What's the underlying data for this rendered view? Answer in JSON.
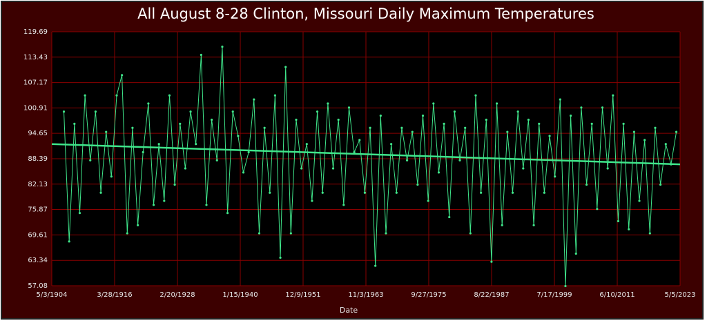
{
  "chart_data": {
    "type": "line",
    "title": "All August 8-28 Clinton, Missouri Daily Maximum Temperatures",
    "x_label": "Date",
    "xlim": [
      "1904-05-03",
      "2023-05-05"
    ],
    "xticks": [
      {
        "value": "1904-05-03",
        "label": "5/3/1904"
      },
      {
        "value": "1916-03-28",
        "label": "3/28/1916"
      },
      {
        "value": "1928-02-20",
        "label": "2/20/1928"
      },
      {
        "value": "1940-01-15",
        "label": "1/15/1940"
      },
      {
        "value": "1951-12-09",
        "label": "12/9/1951"
      },
      {
        "value": "1963-11-03",
        "label": "11/3/1963"
      },
      {
        "value": "1975-09-27",
        "label": "9/27/1975"
      },
      {
        "value": "1987-08-22",
        "label": "8/22/1987"
      },
      {
        "value": "1999-07-17",
        "label": "7/17/1999"
      },
      {
        "value": "2011-06-10",
        "label": "6/10/2011"
      },
      {
        "value": "2023-05-05",
        "label": "5/5/2023"
      }
    ],
    "ylim": [
      57.08,
      119.69
    ],
    "yticks": [
      57.08,
      63.34,
      69.61,
      75.87,
      82.13,
      88.39,
      94.65,
      100.91,
      107.17,
      113.43,
      119.69
    ],
    "grid": true,
    "series": [
      {
        "color": "#3fe58a",
        "x": [
          "1906-08-18",
          "1907-08-18",
          "1908-08-18",
          "1909-08-18",
          "1910-08-18",
          "1911-08-18",
          "1912-08-18",
          "1913-08-18",
          "1914-08-18",
          "1915-08-18",
          "1916-08-18",
          "1917-08-18",
          "1918-08-18",
          "1919-08-18",
          "1920-08-18",
          "1921-08-18",
          "1922-08-18",
          "1923-08-18",
          "1924-08-18",
          "1925-08-18",
          "1926-08-18",
          "1927-08-18",
          "1928-08-18",
          "1929-08-18",
          "1930-08-18",
          "1931-08-18",
          "1932-08-18",
          "1933-08-18",
          "1934-08-18",
          "1935-08-18",
          "1936-08-18",
          "1937-08-18",
          "1938-08-18",
          "1939-08-18",
          "1940-08-18",
          "1941-08-18",
          "1942-08-18",
          "1943-08-18",
          "1944-08-18",
          "1945-08-18",
          "1946-08-18",
          "1947-08-18",
          "1948-08-18",
          "1949-08-18",
          "1950-08-18",
          "1951-08-18",
          "1952-08-18",
          "1953-08-18",
          "1954-08-18",
          "1955-08-18",
          "1956-08-18",
          "1957-08-18",
          "1958-08-18",
          "1959-08-18",
          "1960-08-18",
          "1961-08-18",
          "1962-08-18",
          "1963-08-18",
          "1964-08-18",
          "1965-08-18",
          "1966-08-18",
          "1967-08-18",
          "1968-08-18",
          "1969-08-18",
          "1970-08-18",
          "1971-08-18",
          "1972-08-18",
          "1973-08-18",
          "1974-08-18",
          "1975-08-18",
          "1976-08-18",
          "1977-08-18",
          "1978-08-18",
          "1979-08-18",
          "1980-08-18",
          "1981-08-18",
          "1982-08-18",
          "1983-08-18",
          "1984-08-18",
          "1985-08-18",
          "1986-08-18",
          "1987-08-18",
          "1988-08-18",
          "1989-08-18",
          "1990-08-18",
          "1991-08-18",
          "1992-08-18",
          "1993-08-18",
          "1994-08-18",
          "1995-08-18",
          "1996-08-18",
          "1997-08-18",
          "1998-08-18",
          "1999-08-18",
          "2000-08-18",
          "2001-08-18",
          "2002-08-18",
          "2003-08-18",
          "2004-08-18",
          "2005-08-18",
          "2006-08-18",
          "2007-08-18",
          "2008-08-18",
          "2009-08-18",
          "2010-08-18",
          "2011-08-18",
          "2012-08-18",
          "2013-08-18",
          "2014-08-18",
          "2015-08-18",
          "2016-08-18",
          "2017-08-18",
          "2018-08-18",
          "2019-08-18",
          "2020-08-18",
          "2021-08-18",
          "2022-08-18"
        ],
        "values": [
          100,
          68,
          97,
          75,
          104,
          88,
          100,
          80,
          95,
          84,
          104,
          109,
          70,
          96,
          72,
          90,
          102,
          77,
          92,
          78,
          104,
          82,
          97,
          86,
          100,
          92,
          114,
          77,
          98,
          88,
          116,
          75,
          100,
          94,
          85,
          90,
          103,
          70,
          96,
          80,
          104,
          64,
          111,
          70,
          98,
          86,
          92,
          78,
          100,
          80,
          102,
          86,
          98,
          77,
          101,
          90,
          93,
          80,
          96,
          62,
          99,
          70,
          92,
          80,
          96,
          88,
          95,
          82,
          99,
          78,
          102,
          85,
          97,
          74,
          100,
          88,
          96,
          70,
          104,
          80,
          98,
          63,
          102,
          72,
          95,
          80,
          100,
          86,
          98,
          72,
          97,
          80,
          94,
          84,
          103,
          57,
          99,
          65,
          101,
          82,
          97,
          76,
          101,
          86,
          104,
          73,
          97,
          71,
          95,
          78,
          93,
          70,
          96,
          82,
          92,
          87,
          95
        ]
      },
      {
        "color": "#3fe58a",
        "x": [
          "1904-05-03",
          "2023-05-05"
        ],
        "values": [
          92.0,
          87.0
        ]
      }
    ]
  }
}
